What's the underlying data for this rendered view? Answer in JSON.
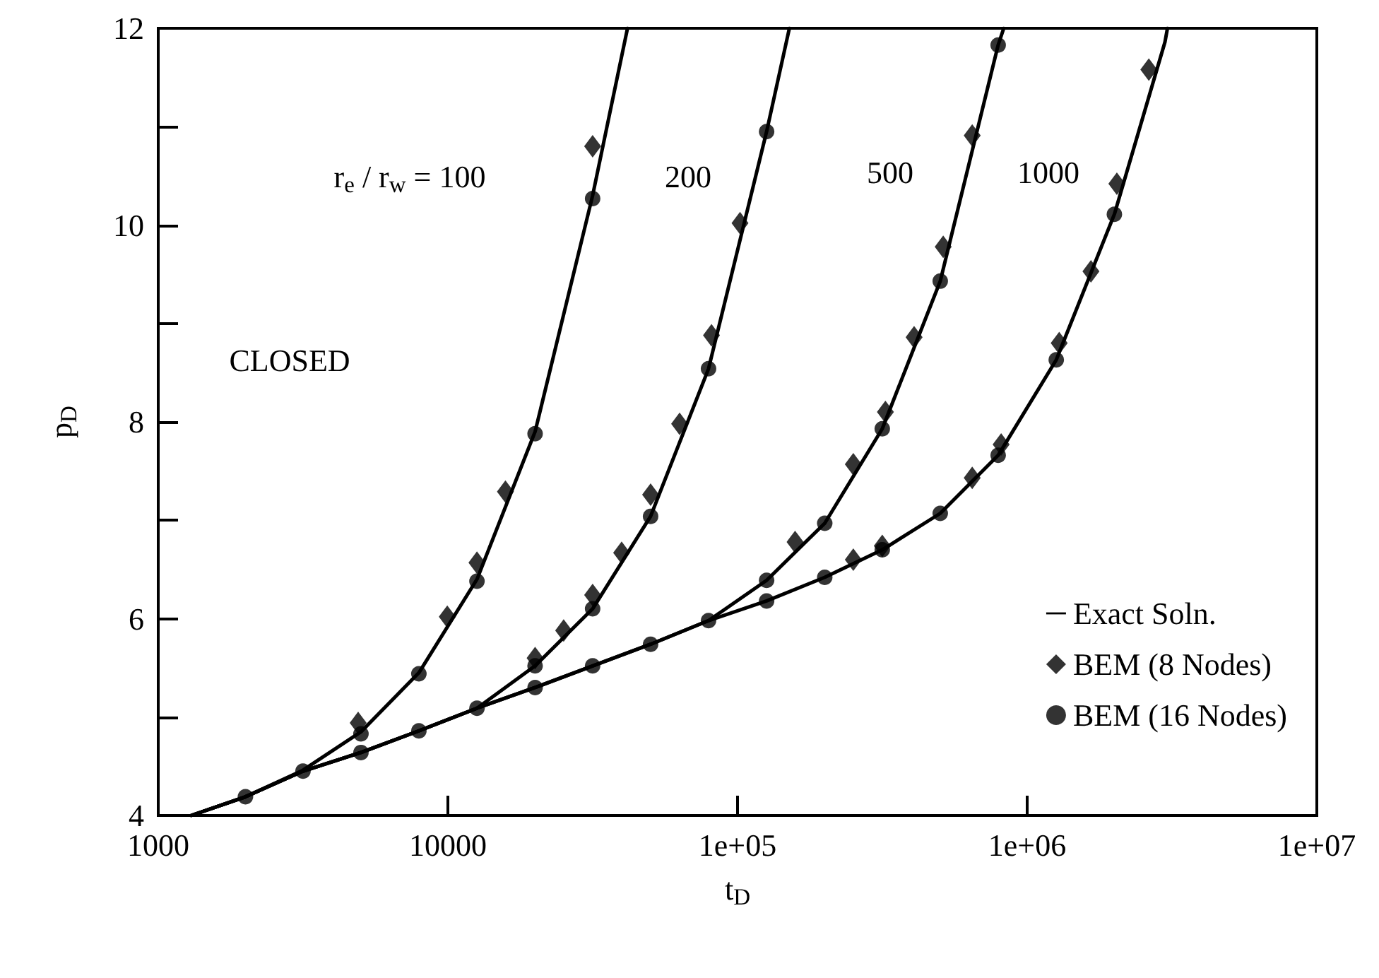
{
  "chart_data": {
    "type": "line",
    "xlabel": "t$_{D}$",
    "ylabel": "p$_{D}$",
    "xlim": [
      1000,
      10000000
    ],
    "ylim": [
      4,
      12
    ],
    "xticks": [
      1000,
      10000,
      {
        "value": 100000,
        "label": "1e+05"
      },
      {
        "value": 1000000,
        "label": "1e+06"
      },
      {
        "value": 10000000,
        "label": "1e+07"
      }
    ],
    "yticks": [
      4,
      {
        "value": 5,
        "label": null
      },
      6,
      {
        "value": 7,
        "label": null
      },
      8,
      {
        "value": 9,
        "label": null
      },
      10,
      {
        "value": 11,
        "label": null
      },
      12
    ],
    "log": "x",
    "legend": "bottom right",
    "annotations": [
      "r$_{e}$ / r$_{w}$ = 100",
      "200",
      "500",
      "1000",
      "CLOSED"
    ],
    "series": [
      {
        "name": "Exact Soln.",
        "color": "#000000",
        "marker": "none",
        "line_style": "solid",
        "x": [
          1300,
          2000,
          3160,
          5010,
          7940,
          12600,
          20000,
          31600,
          36000,
          41700
        ],
        "values": [
          4,
          4.19,
          4.46,
          4.85,
          5.45,
          6.4,
          7.9,
          10.3,
          11.1,
          12
        ]
      },
      {
        "color": "#000000",
        "marker": "none",
        "line_style": "solid",
        "x": [
          1300,
          2000,
          3160,
          5010,
          7940,
          12600,
          20000,
          31600,
          50100,
          79400,
          126000,
          151000
        ],
        "values": [
          4,
          4.19,
          4.45,
          4.64,
          4.86,
          5.09,
          5.52,
          6.1,
          7.04,
          8.54,
          10.95,
          12
        ]
      },
      {
        "color": "#000000",
        "marker": "none",
        "line_style": "solid",
        "x": [
          1300,
          2000,
          3160,
          5010,
          7940,
          12600,
          20000,
          31600,
          50100,
          79400,
          126000,
          200000,
          316000,
          501000,
          794000,
          830000
        ],
        "values": [
          4,
          4.19,
          4.45,
          4.64,
          4.86,
          5.09,
          5.3,
          5.52,
          5.74,
          5.98,
          6.39,
          6.97,
          7.93,
          9.43,
          11.83,
          12
        ]
      },
      {
        "color": "#000000",
        "marker": "none",
        "line_style": "solid",
        "x": [
          1300,
          2000,
          3160,
          5010,
          7940,
          12600,
          20000,
          31600,
          50100,
          79400,
          126000,
          200000,
          316000,
          501000,
          794000,
          1260000,
          2000000,
          2990000,
          3050000
        ],
        "values": [
          4,
          4.19,
          4.45,
          4.64,
          4.86,
          5.09,
          5.3,
          5.52,
          5.74,
          5.98,
          6.18,
          6.42,
          6.7,
          7.07,
          7.66,
          8.63,
          10.11,
          11.86,
          12
        ]
      },
      {
        "name": "BEM (8 Nodes)",
        "type": "scatter",
        "color": "#000000",
        "marker": "diamond",
        "x": [
          4900,
          9950,
          12600,
          15800,
          31600,
          20000,
          25100,
          31600,
          39800,
          50100,
          63100,
          81300,
          102000,
          158000,
          251000,
          324000,
          407000,
          513000,
          646000,
          251000,
          316000,
          646000,
          813000,
          1290000,
          1660000,
          2040000,
          2630000
        ],
        "values": [
          4.94,
          6.02,
          6.57,
          7.29,
          10.8,
          5.6,
          5.88,
          6.24,
          6.67,
          7.26,
          7.98,
          8.88,
          10.02,
          6.78,
          7.57,
          8.1,
          8.86,
          9.78,
          10.91,
          6.6,
          6.74,
          7.43,
          7.77,
          8.8,
          9.53,
          10.42,
          11.58
        ]
      },
      {
        "name": "BEM (16 Nodes)",
        "type": "scatter",
        "color": "#000000",
        "marker": "circle",
        "x": [
          2000,
          3160,
          5010,
          7940,
          12600,
          20000,
          31600,
          50100,
          79400,
          126000,
          200000,
          316000,
          501000,
          794000,
          1260000,
          2000000,
          5010,
          7940,
          12600,
          20000,
          31600,
          20000,
          31600,
          50100,
          79400,
          126000,
          126000,
          200000,
          316000,
          501000,
          794000
        ],
        "values": [
          4.19,
          4.45,
          4.64,
          4.86,
          5.09,
          5.3,
          5.52,
          5.74,
          5.98,
          6.18,
          6.42,
          6.7,
          7.07,
          7.66,
          8.63,
          10.11,
          4.83,
          5.44,
          6.38,
          7.88,
          10.27,
          5.52,
          6.1,
          7.04,
          8.54,
          10.95,
          6.39,
          6.97,
          7.93,
          9.43,
          11.83
        ]
      }
    ]
  }
}
